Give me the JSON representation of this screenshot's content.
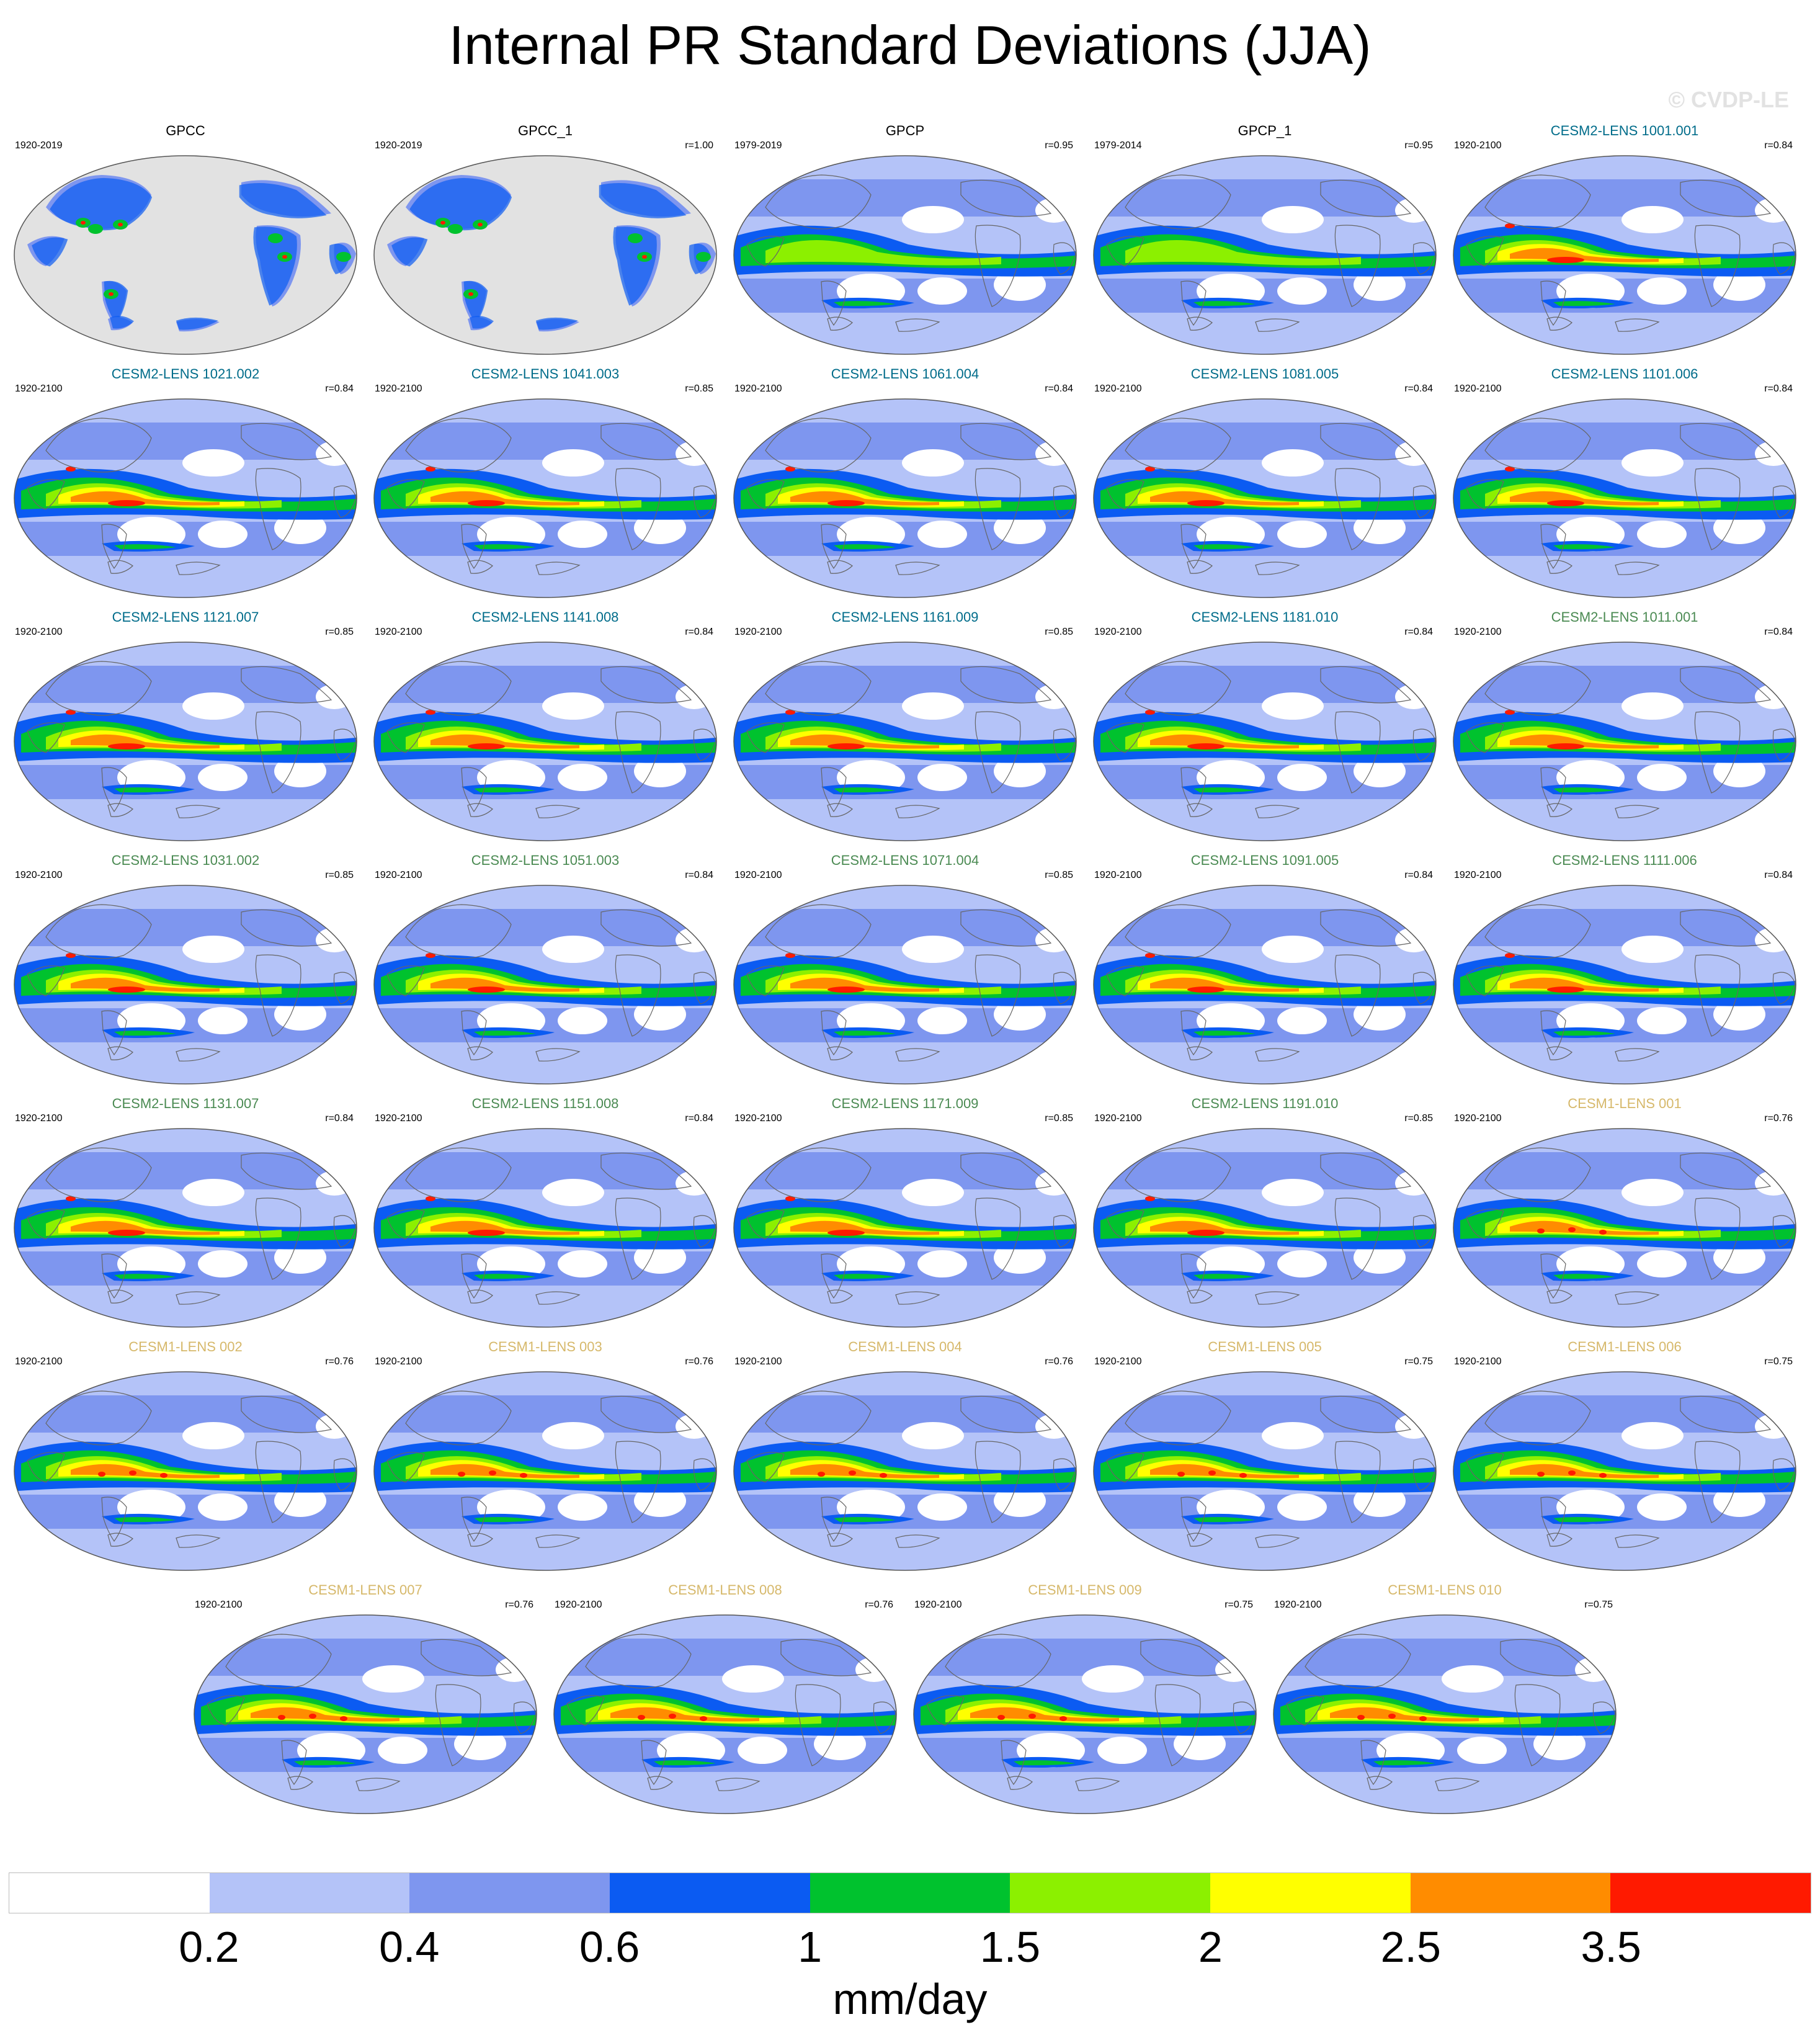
{
  "title": "Internal PR Standard Deviations (JJA)",
  "watermark": "© CVDP-LE",
  "colors": {
    "bins": [
      "#ffffff",
      "#b4c3f8",
      "#7e96ef",
      "#0b5bf2",
      "#00c22e",
      "#8cf000",
      "#ffff00",
      "#ff8c00",
      "#ff1a00"
    ],
    "land_gray": "#e2e2e2",
    "title_obs": "#000000",
    "title_cesm2_a": "#006c8a",
    "title_cesm2_b": "#4a8a52",
    "title_cesm1": "#d6b86a"
  },
  "panels": [
    {
      "name": "GPCC",
      "years": "1920-2019",
      "r": "",
      "group": "obs",
      "style": "gpcc"
    },
    {
      "name": "GPCC_1",
      "years": "1920-2019",
      "r": "r=1.00",
      "group": "obs",
      "style": "gpcc"
    },
    {
      "name": "GPCP",
      "years": "1979-2019",
      "r": "r=0.95",
      "group": "obs",
      "style": "gpcp"
    },
    {
      "name": "GPCP_1",
      "years": "1979-2014",
      "r": "r=0.95",
      "group": "obs",
      "style": "gpcp"
    },
    {
      "name": "CESM2-LENS 1001.001",
      "years": "1920-2100",
      "r": "r=0.84",
      "group": "cesm2_a",
      "style": "cesm2"
    },
    {
      "name": "CESM2-LENS 1021.002",
      "years": "1920-2100",
      "r": "r=0.84",
      "group": "cesm2_a",
      "style": "cesm2"
    },
    {
      "name": "CESM2-LENS 1041.003",
      "years": "1920-2100",
      "r": "r=0.85",
      "group": "cesm2_a",
      "style": "cesm2"
    },
    {
      "name": "CESM2-LENS 1061.004",
      "years": "1920-2100",
      "r": "r=0.84",
      "group": "cesm2_a",
      "style": "cesm2"
    },
    {
      "name": "CESM2-LENS 1081.005",
      "years": "1920-2100",
      "r": "r=0.84",
      "group": "cesm2_a",
      "style": "cesm2"
    },
    {
      "name": "CESM2-LENS 1101.006",
      "years": "1920-2100",
      "r": "r=0.84",
      "group": "cesm2_a",
      "style": "cesm2"
    },
    {
      "name": "CESM2-LENS 1121.007",
      "years": "1920-2100",
      "r": "r=0.85",
      "group": "cesm2_a",
      "style": "cesm2"
    },
    {
      "name": "CESM2-LENS 1141.008",
      "years": "1920-2100",
      "r": "r=0.84",
      "group": "cesm2_a",
      "style": "cesm2"
    },
    {
      "name": "CESM2-LENS 1161.009",
      "years": "1920-2100",
      "r": "r=0.85",
      "group": "cesm2_a",
      "style": "cesm2"
    },
    {
      "name": "CESM2-LENS 1181.010",
      "years": "1920-2100",
      "r": "r=0.84",
      "group": "cesm2_a",
      "style": "cesm2"
    },
    {
      "name": "CESM2-LENS 1011.001",
      "years": "1920-2100",
      "r": "r=0.84",
      "group": "cesm2_b",
      "style": "cesm2"
    },
    {
      "name": "CESM2-LENS 1031.002",
      "years": "1920-2100",
      "r": "r=0.85",
      "group": "cesm2_b",
      "style": "cesm2"
    },
    {
      "name": "CESM2-LENS 1051.003",
      "years": "1920-2100",
      "r": "r=0.84",
      "group": "cesm2_b",
      "style": "cesm2"
    },
    {
      "name": "CESM2-LENS 1071.004",
      "years": "1920-2100",
      "r": "r=0.85",
      "group": "cesm2_b",
      "style": "cesm2"
    },
    {
      "name": "CESM2-LENS 1091.005",
      "years": "1920-2100",
      "r": "r=0.84",
      "group": "cesm2_b",
      "style": "cesm2"
    },
    {
      "name": "CESM2-LENS 1111.006",
      "years": "1920-2100",
      "r": "r=0.84",
      "group": "cesm2_b",
      "style": "cesm2"
    },
    {
      "name": "CESM2-LENS 1131.007",
      "years": "1920-2100",
      "r": "r=0.84",
      "group": "cesm2_b",
      "style": "cesm2"
    },
    {
      "name": "CESM2-LENS 1151.008",
      "years": "1920-2100",
      "r": "r=0.84",
      "group": "cesm2_b",
      "style": "cesm2"
    },
    {
      "name": "CESM2-LENS 1171.009",
      "years": "1920-2100",
      "r": "r=0.85",
      "group": "cesm2_b",
      "style": "cesm2"
    },
    {
      "name": "CESM2-LENS 1191.010",
      "years": "1920-2100",
      "r": "r=0.85",
      "group": "cesm2_b",
      "style": "cesm2"
    },
    {
      "name": "CESM1-LENS 001",
      "years": "1920-2100",
      "r": "r=0.76",
      "group": "cesm1",
      "style": "cesm1"
    },
    {
      "name": "CESM1-LENS 002",
      "years": "1920-2100",
      "r": "r=0.76",
      "group": "cesm1",
      "style": "cesm1"
    },
    {
      "name": "CESM1-LENS 003",
      "years": "1920-2100",
      "r": "r=0.76",
      "group": "cesm1",
      "style": "cesm1"
    },
    {
      "name": "CESM1-LENS 004",
      "years": "1920-2100",
      "r": "r=0.76",
      "group": "cesm1",
      "style": "cesm1"
    },
    {
      "name": "CESM1-LENS 005",
      "years": "1920-2100",
      "r": "r=0.75",
      "group": "cesm1",
      "style": "cesm1"
    },
    {
      "name": "CESM1-LENS 006",
      "years": "1920-2100",
      "r": "r=0.75",
      "group": "cesm1",
      "style": "cesm1"
    },
    {
      "name": "CESM1-LENS 007",
      "years": "1920-2100",
      "r": "r=0.76",
      "group": "cesm1",
      "style": "cesm1"
    },
    {
      "name": "CESM1-LENS 008",
      "years": "1920-2100",
      "r": "r=0.76",
      "group": "cesm1",
      "style": "cesm1"
    },
    {
      "name": "CESM1-LENS 009",
      "years": "1920-2100",
      "r": "r=0.75",
      "group": "cesm1",
      "style": "cesm1"
    },
    {
      "name": "CESM1-LENS 010",
      "years": "1920-2100",
      "r": "r=0.75",
      "group": "cesm1",
      "style": "cesm1"
    }
  ],
  "colorbar": {
    "ticks": [
      "0.2",
      "0.4",
      "0.6",
      "1",
      "1.5",
      "2",
      "2.5",
      "3.5"
    ],
    "units": "mm/day"
  }
}
